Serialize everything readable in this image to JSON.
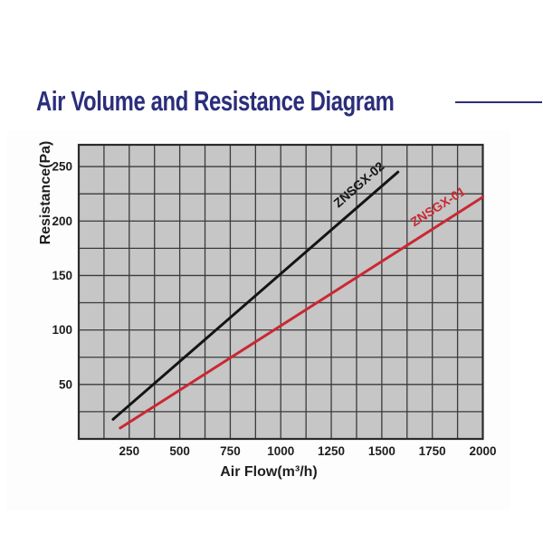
{
  "page": {
    "title": "Air Volume and Resistance Diagram"
  },
  "accent": {
    "title_color": "#2b2e7b"
  },
  "chart_data": {
    "type": "line",
    "title": "Air Volume and Resistance Diagram",
    "xlabel": "Air Flow(m³/h)",
    "ylabel": "Resistance(Pa)",
    "xlim": [
      0,
      2000
    ],
    "ylim": [
      0,
      270
    ],
    "x_ticks": [
      250,
      500,
      750,
      1000,
      1250,
      1500,
      1750,
      2000
    ],
    "y_ticks": [
      50,
      100,
      150,
      200,
      250
    ],
    "x_grid_step": 125,
    "y_grid_step": 25,
    "grid": true,
    "legend_position": "labels-along-lines",
    "plot_background": "#c5c6c5",
    "grid_color": "#3b3b3b",
    "border_color": "#2b2b2b",
    "tick_color": "#1e1e1e",
    "series": [
      {
        "name": "ZNSGX-02",
        "color": "#141414",
        "points": [
          [
            170,
            18
          ],
          [
            1580,
            245
          ]
        ]
      },
      {
        "name": "ZNSGX-01",
        "color": "#cb2733",
        "points": [
          [
            205,
            10
          ],
          [
            2000,
            222
          ]
        ]
      }
    ]
  }
}
